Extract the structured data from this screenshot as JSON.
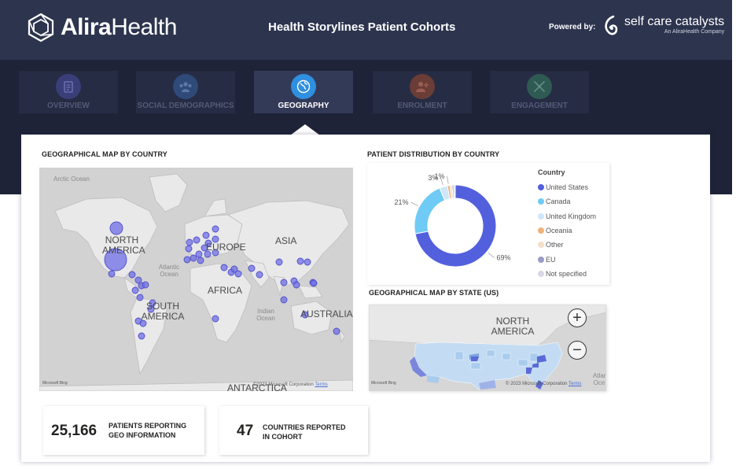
{
  "header": {
    "logo_bold": "Alira",
    "logo_light": "Health",
    "title": "Health Storylines Patient Cohorts",
    "powered_by": "Powered by:",
    "partner_name": "self care catalysts",
    "partner_sub": "An AliraHealth Company"
  },
  "tabs": [
    {
      "label": "OVERVIEW",
      "icon": "clipboard-icon",
      "color": "#3a3f7a"
    },
    {
      "label": "SOCIAL DEMOGRAPHICS",
      "icon": "people-icon",
      "color": "#2f4a78"
    },
    {
      "label": "GEOGRAPHY",
      "icon": "globe-icon",
      "color": "#2f8fe0"
    },
    {
      "label": "ENROLMENT",
      "icon": "add-user-icon",
      "color": "#6a3d36"
    },
    {
      "label": "ENGAGEMENT",
      "icon": "engagement-icon",
      "color": "#2f5a53"
    }
  ],
  "geo_country": {
    "title": "GEOGRAPHICAL MAP BY COUNTRY",
    "labels": {
      "arctic_ocean": "Arctic Ocean",
      "north_america": "NORTH AMERICA",
      "europe": "EUROPE",
      "asia": "ASIA",
      "atlantic_ocean": "Atlantic Ocean",
      "africa": "AFRICA",
      "south_america": "SOUTH AMERICA",
      "indian_ocean": "Indian Ocean",
      "australia": "AUSTRALIA",
      "antarctica": "ANTARCTICA"
    },
    "bing": "Microsoft Bing",
    "copyright": "©2023 Microsoft Corporation",
    "terms": "Terms"
  },
  "distribution": {
    "title": "PATIENT DISTRIBUTION BY COUNTRY",
    "legend_title": "Country"
  },
  "chart_data": {
    "type": "pie",
    "legend_title": "Country",
    "categories": [
      "United States",
      "Canada",
      "United Kingdom",
      "Oceania",
      "Other",
      "EU",
      "Not specified"
    ],
    "values": [
      69,
      21,
      3,
      1,
      0.8,
      0.6,
      0.6
    ],
    "data_labels": [
      "69%",
      "21%",
      "3%",
      "1%",
      "",
      "",
      ""
    ],
    "colors": [
      "#5360dd",
      "#6fcbf5",
      "#cfe7f7",
      "#f0b27a",
      "#f5dfc9",
      "#9a9bc8",
      "#d8d8e4"
    ],
    "legend_position": "right"
  },
  "geo_state": {
    "title": "GEOGRAPHICAL MAP BY STATE (US)",
    "north_america": "NORTH AMERICA",
    "ocean_fragment": "Atlar Oce",
    "bing": "Microsoft Bing",
    "copyright": "© 2023 Microsoft Corporation",
    "terms": "Terms",
    "zoom_in": "+",
    "zoom_out": "−"
  },
  "kpis": {
    "patients_value": "25,166",
    "patients_label_1": "PATIENTS REPORTING",
    "patients_label_2": "GEO INFORMATION",
    "countries_value": "47",
    "countries_label_1": "COUNTRIES REPORTED",
    "countries_label_2": "IN COHORT"
  }
}
